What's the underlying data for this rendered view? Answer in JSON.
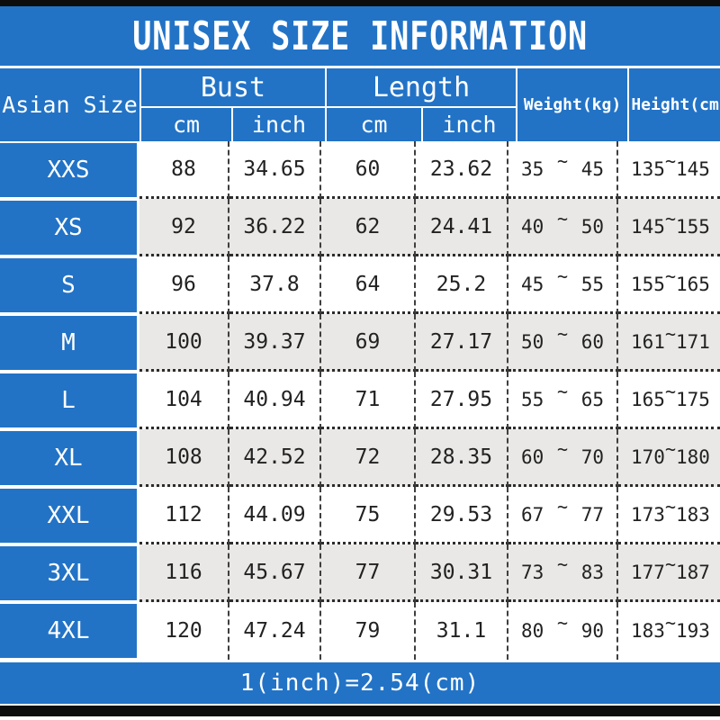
{
  "page": {
    "title": "UNISEX SIZE INFORMATION",
    "footer_note": "1(inch)=2.54(cm)"
  },
  "colors": {
    "primary_blue": "#2273c6",
    "alt_row_gray": "#e9e8e6",
    "black_bar": "#0d0d0d"
  },
  "table": {
    "corner_header": "Asian Size",
    "column_groups": [
      {
        "label": "Bust",
        "subcolumns": [
          "cm",
          "inch"
        ]
      },
      {
        "label": "Length",
        "subcolumns": [
          "cm",
          "inch"
        ]
      }
    ],
    "range_headers": [
      "Weight(kg)",
      "Height(cm)"
    ],
    "range_separator": "~",
    "rows": [
      {
        "size": "XXS",
        "bust_cm": "88",
        "bust_inch": "34.65",
        "length_cm": "60",
        "length_inch": "23.62",
        "weight": {
          "min": "35",
          "max": "45"
        },
        "height": {
          "min": "135",
          "max": "145"
        }
      },
      {
        "size": "XS",
        "bust_cm": "92",
        "bust_inch": "36.22",
        "length_cm": "62",
        "length_inch": "24.41",
        "weight": {
          "min": "40",
          "max": "50"
        },
        "height": {
          "min": "145",
          "max": "155"
        }
      },
      {
        "size": "S",
        "bust_cm": "96",
        "bust_inch": "37.8",
        "length_cm": "64",
        "length_inch": "25.2",
        "weight": {
          "min": "45",
          "max": "55"
        },
        "height": {
          "min": "155",
          "max": "165"
        }
      },
      {
        "size": "M",
        "bust_cm": "100",
        "bust_inch": "39.37",
        "length_cm": "69",
        "length_inch": "27.17",
        "weight": {
          "min": "50",
          "max": "60"
        },
        "height": {
          "min": "161",
          "max": "171"
        }
      },
      {
        "size": "L",
        "bust_cm": "104",
        "bust_inch": "40.94",
        "length_cm": "71",
        "length_inch": "27.95",
        "weight": {
          "min": "55",
          "max": "65"
        },
        "height": {
          "min": "165",
          "max": "175"
        }
      },
      {
        "size": "XL",
        "bust_cm": "108",
        "bust_inch": "42.52",
        "length_cm": "72",
        "length_inch": "28.35",
        "weight": {
          "min": "60",
          "max": "70"
        },
        "height": {
          "min": "170",
          "max": "180"
        }
      },
      {
        "size": "XXL",
        "bust_cm": "112",
        "bust_inch": "44.09",
        "length_cm": "75",
        "length_inch": "29.53",
        "weight": {
          "min": "67",
          "max": "77"
        },
        "height": {
          "min": "173",
          "max": "183"
        }
      },
      {
        "size": "3XL",
        "bust_cm": "116",
        "bust_inch": "45.67",
        "length_cm": "77",
        "length_inch": "30.31",
        "weight": {
          "min": "73",
          "max": "83"
        },
        "height": {
          "min": "177",
          "max": "187"
        }
      },
      {
        "size": "4XL",
        "bust_cm": "120",
        "bust_inch": "47.24",
        "length_cm": "79",
        "length_inch": "31.1",
        "weight": {
          "min": "80",
          "max": "90"
        },
        "height": {
          "min": "183",
          "max": "193"
        }
      }
    ]
  },
  "chart_data": {
    "type": "table",
    "title": "UNISEX SIZE INFORMATION",
    "columns": [
      "Asian Size",
      "Bust cm",
      "Bust inch",
      "Length cm",
      "Length inch",
      "Weight(kg)",
      "Height(cm)"
    ],
    "rows": [
      [
        "XXS",
        88,
        34.65,
        60,
        23.62,
        "35~45",
        "135~145"
      ],
      [
        "XS",
        92,
        36.22,
        62,
        24.41,
        "40~50",
        "145~155"
      ],
      [
        "S",
        96,
        37.8,
        64,
        25.2,
        "45~55",
        "155~165"
      ],
      [
        "M",
        100,
        39.37,
        69,
        27.17,
        "50~60",
        "161~171"
      ],
      [
        "L",
        104,
        40.94,
        71,
        27.95,
        "55~65",
        "165~175"
      ],
      [
        "XL",
        108,
        42.52,
        72,
        28.35,
        "60~70",
        "170~180"
      ],
      [
        "XXL",
        112,
        44.09,
        75,
        29.53,
        "67~77",
        "173~183"
      ],
      [
        "3XL",
        116,
        45.67,
        77,
        30.31,
        "73~83",
        "177~187"
      ],
      [
        "4XL",
        120,
        47.24,
        79,
        31.1,
        "80~90",
        "183~193"
      ]
    ],
    "footnote": "1(inch)=2.54(cm)",
    "layout": {
      "header_background": "#2273c6",
      "alternating_rows": true,
      "grid": "dashed"
    }
  }
}
